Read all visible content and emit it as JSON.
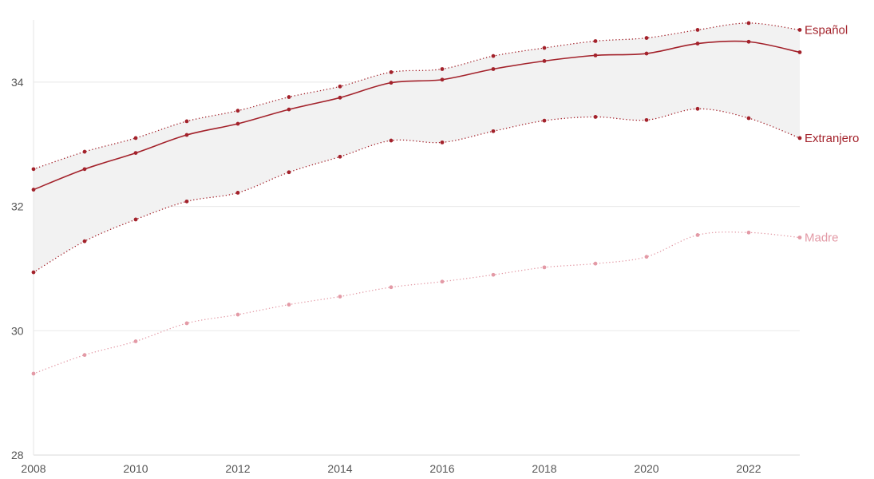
{
  "chart_data": {
    "type": "line",
    "title": "",
    "xlabel": "",
    "ylabel": "",
    "x": [
      2008,
      2009,
      2010,
      2011,
      2012,
      2013,
      2014,
      2015,
      2016,
      2017,
      2018,
      2019,
      2020,
      2021,
      2022,
      2023
    ],
    "xlim": [
      2008,
      2023
    ],
    "ylim": [
      28,
      35
    ],
    "x_ticks": [
      "2008",
      "2010",
      "2012",
      "2014",
      "2016",
      "2018",
      "2020",
      "2022"
    ],
    "y_ticks": [
      "28",
      "30",
      "32",
      "34"
    ],
    "grid": "horizontal",
    "legend": "labels at line ends (right)",
    "band": {
      "between": [
        "Español",
        "Extranjero"
      ],
      "color": "#f2f2f2"
    },
    "series": [
      {
        "name": "Español",
        "color": "#a3222b",
        "style": "dotted",
        "values": [
          32.6,
          32.88,
          33.1,
          33.37,
          33.54,
          33.76,
          33.93,
          34.16,
          34.21,
          34.42,
          34.55,
          34.66,
          34.71,
          34.84,
          34.95,
          34.84
        ]
      },
      {
        "name": "",
        "color": "#a3222b",
        "style": "solid",
        "values": [
          32.27,
          32.6,
          32.86,
          33.15,
          33.33,
          33.56,
          33.75,
          33.99,
          34.04,
          34.21,
          34.34,
          34.43,
          34.46,
          34.62,
          34.65,
          34.48
        ]
      },
      {
        "name": "Extranjero",
        "color": "#a3222b",
        "style": "dotted",
        "values": [
          30.94,
          31.44,
          31.79,
          32.08,
          32.22,
          32.55,
          32.8,
          33.06,
          33.03,
          33.21,
          33.38,
          33.44,
          33.39,
          33.57,
          33.42,
          33.1
        ]
      },
      {
        "name": "Madre",
        "color": "#e39aa6",
        "style": "dotted",
        "values": [
          29.31,
          29.61,
          29.83,
          30.12,
          30.26,
          30.42,
          30.55,
          30.7,
          30.79,
          30.9,
          31.02,
          31.08,
          31.19,
          31.54,
          31.58,
          31.5
        ]
      }
    ]
  }
}
